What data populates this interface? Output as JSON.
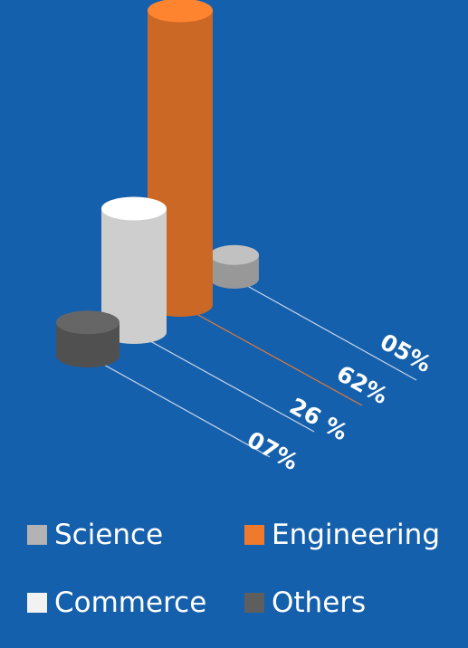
{
  "chart_data": {
    "type": "bar",
    "categories": [
      "Others",
      "Commerce",
      "Engineering",
      "Science"
    ],
    "values": [
      7,
      26,
      62,
      5
    ],
    "value_labels": [
      "07%",
      "26 %",
      "62%",
      "05%"
    ],
    "colors": {
      "Science": "#b3b3b3",
      "Engineering": "#f07a2c",
      "Commerce": "#f2f2f2",
      "Others": "#5e5e5e",
      "background": "#1560ac"
    }
  },
  "legend": [
    {
      "label": "Science",
      "color": "#b3b3b3"
    },
    {
      "label": "Engineering",
      "color": "#f07a2c"
    },
    {
      "label": "Commerce",
      "color": "#f2f2f2"
    },
    {
      "label": "Others",
      "color": "#5e5e5e"
    }
  ]
}
